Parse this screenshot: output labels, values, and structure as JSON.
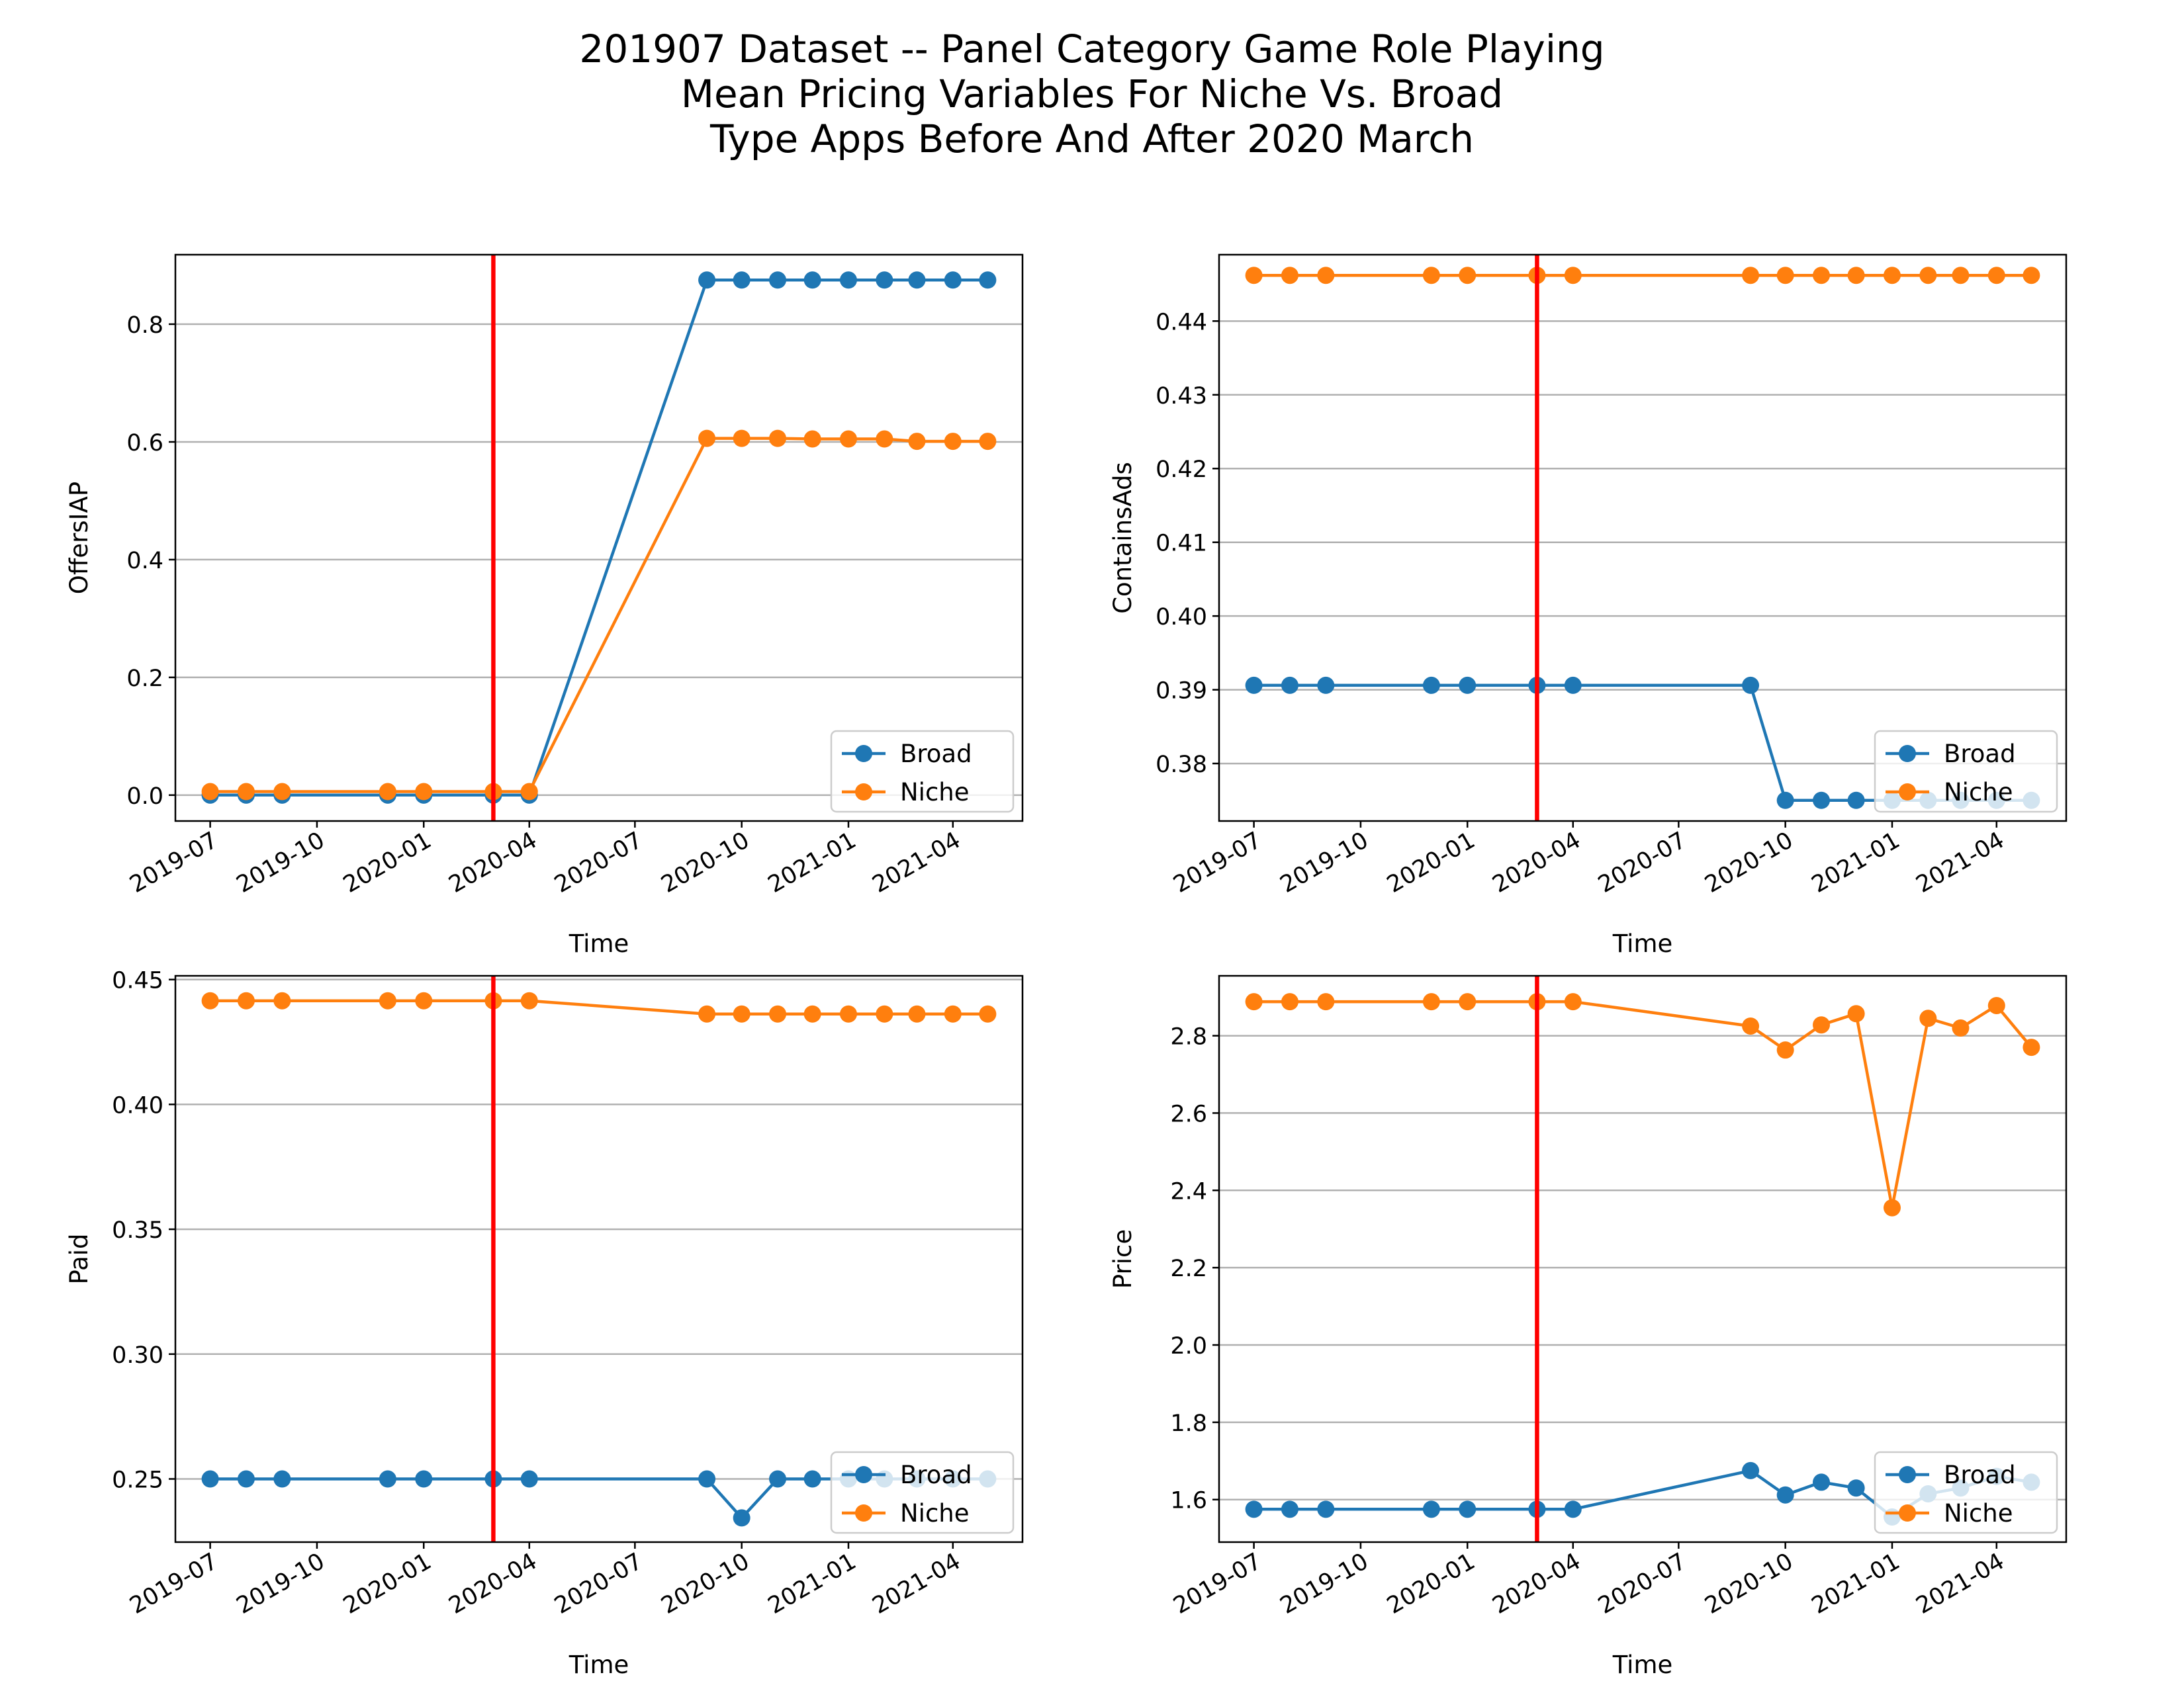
{
  "figure": {
    "title_lines": [
      "201907 Dataset -- Panel Category Game Role Playing",
      "Mean Pricing Variables For Niche Vs. Broad",
      "Type Apps Before And After 2020 March"
    ]
  },
  "colors": {
    "broad": "#1f77b4",
    "niche": "#ff7f0e",
    "marker_line": "#ff0000",
    "grid": "#b0b0b0"
  },
  "chart_data": [
    {
      "type": "line",
      "ylabel": "OffersIAP",
      "xlabel": "Time",
      "xlim": [
        "2019-06-01",
        "2021-05-31"
      ],
      "ylim": [
        -0.044,
        0.918
      ],
      "yticks": [
        0.0,
        0.2,
        0.4,
        0.6,
        0.8
      ],
      "ytick_labels": [
        "0.0",
        "0.2",
        "0.4",
        "0.6",
        "0.8"
      ],
      "xticks": [
        "2019-07-01",
        "2019-10-01",
        "2020-01-01",
        "2020-04-01",
        "2020-07-01",
        "2020-10-01",
        "2021-01-01",
        "2021-04-01"
      ],
      "xtick_labels": [
        "2019-07",
        "2019-10",
        "2020-01",
        "2020-04",
        "2020-07",
        "2020-10",
        "2021-01",
        "2021-04"
      ],
      "vline": "2020-03-01",
      "grid": "y",
      "legend_position": "lower right",
      "series": [
        {
          "name": "Broad",
          "x": [
            "2019-07-01",
            "2019-08-01",
            "2019-09-01",
            "2019-12-01",
            "2020-01-01",
            "2020-03-01",
            "2020-04-01",
            "2020-09-01",
            "2020-10-01",
            "2020-11-01",
            "2020-12-01",
            "2021-01-01",
            "2021-02-01",
            "2021-03-01",
            "2021-04-01",
            "2021-05-01"
          ],
          "y": [
            0.0,
            0.0,
            0.0,
            0.0,
            0.0,
            0.0,
            0.0,
            0.875,
            0.875,
            0.875,
            0.875,
            0.875,
            0.875,
            0.875,
            0.875,
            0.875
          ]
        },
        {
          "name": "Niche",
          "x": [
            "2019-07-01",
            "2019-08-01",
            "2019-09-01",
            "2019-12-01",
            "2020-01-01",
            "2020-03-01",
            "2020-04-01",
            "2020-09-01",
            "2020-10-01",
            "2020-11-01",
            "2020-12-01",
            "2021-01-01",
            "2021-02-01",
            "2021-03-01",
            "2021-04-01",
            "2021-05-01"
          ],
          "y": [
            0.006,
            0.006,
            0.006,
            0.006,
            0.006,
            0.006,
            0.006,
            0.606,
            0.606,
            0.606,
            0.605,
            0.605,
            0.605,
            0.601,
            0.601,
            0.601
          ]
        }
      ]
    },
    {
      "type": "line",
      "ylabel": "ContainsAds",
      "xlabel": "Time",
      "xlim": [
        "2019-06-01",
        "2021-05-31"
      ],
      "ylim": [
        0.3722,
        0.449
      ],
      "yticks": [
        0.38,
        0.39,
        0.4,
        0.41,
        0.42,
        0.43,
        0.44
      ],
      "ytick_labels": [
        "0.38",
        "0.39",
        "0.40",
        "0.41",
        "0.42",
        "0.43",
        "0.44"
      ],
      "xticks": [
        "2019-07-01",
        "2019-10-01",
        "2020-01-01",
        "2020-04-01",
        "2020-07-01",
        "2020-10-01",
        "2021-01-01",
        "2021-04-01"
      ],
      "xtick_labels": [
        "2019-07",
        "2019-10",
        "2020-01",
        "2020-04",
        "2020-07",
        "2020-10",
        "2021-01",
        "2021-04"
      ],
      "vline": "2020-03-01",
      "grid": "y",
      "legend_position": "lower right",
      "series": [
        {
          "name": "Broad",
          "x": [
            "2019-07-01",
            "2019-08-01",
            "2019-09-01",
            "2019-12-01",
            "2020-01-01",
            "2020-03-01",
            "2020-04-01",
            "2020-09-01",
            "2020-10-01",
            "2020-11-01",
            "2020-12-01",
            "2021-01-01",
            "2021-02-01",
            "2021-03-01",
            "2021-04-01",
            "2021-05-01"
          ],
          "y": [
            0.3906,
            0.3906,
            0.3906,
            0.3906,
            0.3906,
            0.3906,
            0.3906,
            0.3906,
            0.375,
            0.375,
            0.375,
            0.375,
            0.375,
            0.375,
            0.375,
            0.375
          ]
        },
        {
          "name": "Niche",
          "x": [
            "2019-07-01",
            "2019-08-01",
            "2019-09-01",
            "2019-12-01",
            "2020-01-01",
            "2020-03-01",
            "2020-04-01",
            "2020-09-01",
            "2020-10-01",
            "2020-11-01",
            "2020-12-01",
            "2021-01-01",
            "2021-02-01",
            "2021-03-01",
            "2021-04-01",
            "2021-05-01"
          ],
          "y": [
            0.4462,
            0.4462,
            0.4462,
            0.4462,
            0.4462,
            0.4462,
            0.4462,
            0.4462,
            0.4462,
            0.4462,
            0.4462,
            0.4462,
            0.4462,
            0.4462,
            0.4462,
            0.4462
          ]
        }
      ]
    },
    {
      "type": "line",
      "ylabel": "Paid",
      "xlabel": "Time",
      "xlim": [
        "2019-06-01",
        "2021-05-31"
      ],
      "ylim": [
        0.2247,
        0.4515
      ],
      "yticks": [
        0.25,
        0.3,
        0.35,
        0.4,
        0.45
      ],
      "ytick_labels": [
        "0.25",
        "0.30",
        "0.35",
        "0.40",
        "0.45"
      ],
      "xticks": [
        "2019-07-01",
        "2019-10-01",
        "2020-01-01",
        "2020-04-01",
        "2020-07-01",
        "2020-10-01",
        "2021-01-01",
        "2021-04-01"
      ],
      "xtick_labels": [
        "2019-07",
        "2019-10",
        "2020-01",
        "2020-04",
        "2020-07",
        "2020-10",
        "2021-01",
        "2021-04"
      ],
      "vline": "2020-03-01",
      "grid": "y",
      "legend_position": "lower right",
      "series": [
        {
          "name": "Broad",
          "x": [
            "2019-07-01",
            "2019-08-01",
            "2019-09-01",
            "2019-12-01",
            "2020-01-01",
            "2020-03-01",
            "2020-04-01",
            "2020-09-01",
            "2020-10-01",
            "2020-11-01",
            "2020-12-01",
            "2021-01-01",
            "2021-02-01",
            "2021-03-01",
            "2021-04-01",
            "2021-05-01"
          ],
          "y": [
            0.25,
            0.25,
            0.25,
            0.25,
            0.25,
            0.25,
            0.25,
            0.25,
            0.2344,
            0.25,
            0.25,
            0.25,
            0.25,
            0.25,
            0.25,
            0.25
          ]
        },
        {
          "name": "Niche",
          "x": [
            "2019-07-01",
            "2019-08-01",
            "2019-09-01",
            "2019-12-01",
            "2020-01-01",
            "2020-03-01",
            "2020-04-01",
            "2020-09-01",
            "2020-10-01",
            "2020-11-01",
            "2020-12-01",
            "2021-01-01",
            "2021-02-01",
            "2021-03-01",
            "2021-04-01",
            "2021-05-01"
          ],
          "y": [
            0.4415,
            0.4415,
            0.4415,
            0.4415,
            0.4415,
            0.4415,
            0.4415,
            0.4362,
            0.4362,
            0.4362,
            0.4362,
            0.4362,
            0.4362,
            0.4362,
            0.4362,
            0.4362
          ]
        }
      ]
    },
    {
      "type": "line",
      "ylabel": "Price",
      "xlabel": "Time",
      "xlim": [
        "2019-06-01",
        "2021-05-31"
      ],
      "ylim": [
        1.49,
        2.955
      ],
      "yticks": [
        1.6,
        1.8,
        2.0,
        2.2,
        2.4,
        2.6,
        2.8
      ],
      "ytick_labels": [
        "1.6",
        "1.8",
        "2.0",
        "2.2",
        "2.4",
        "2.6",
        "2.8"
      ],
      "xticks": [
        "2019-07-01",
        "2019-10-01",
        "2020-01-01",
        "2020-04-01",
        "2020-07-01",
        "2020-10-01",
        "2021-01-01",
        "2021-04-01"
      ],
      "xtick_labels": [
        "2019-07",
        "2019-10",
        "2020-01",
        "2020-04",
        "2020-07",
        "2020-10",
        "2021-01",
        "2021-04"
      ],
      "vline": "2020-03-01",
      "grid": "y",
      "legend_position": "lower right",
      "series": [
        {
          "name": "Broad",
          "x": [
            "2019-07-01",
            "2019-08-01",
            "2019-09-01",
            "2019-12-01",
            "2020-01-01",
            "2020-03-01",
            "2020-04-01",
            "2020-09-01",
            "2020-10-01",
            "2020-11-01",
            "2020-12-01",
            "2021-01-01",
            "2021-02-01",
            "2021-03-01",
            "2021-04-01",
            "2021-05-01"
          ],
          "y": [
            1.575,
            1.575,
            1.575,
            1.575,
            1.575,
            1.575,
            1.575,
            1.675,
            1.612,
            1.645,
            1.63,
            1.555,
            1.615,
            1.63,
            1.66,
            1.645
          ]
        },
        {
          "name": "Niche",
          "x": [
            "2019-07-01",
            "2019-08-01",
            "2019-09-01",
            "2019-12-01",
            "2020-01-01",
            "2020-03-01",
            "2020-04-01",
            "2020-09-01",
            "2020-10-01",
            "2020-11-01",
            "2020-12-01",
            "2021-01-01",
            "2021-02-01",
            "2021-03-01",
            "2021-04-01",
            "2021-05-01"
          ],
          "y": [
            2.888,
            2.888,
            2.888,
            2.888,
            2.888,
            2.888,
            2.888,
            2.825,
            2.763,
            2.828,
            2.857,
            2.355,
            2.845,
            2.82,
            2.878,
            2.77
          ]
        }
      ]
    }
  ]
}
